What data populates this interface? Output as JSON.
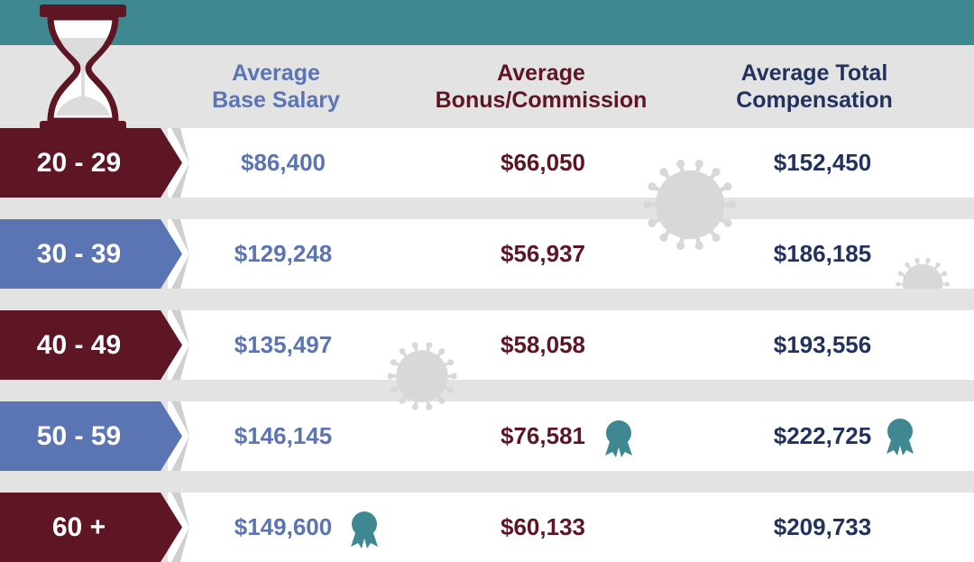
{
  "colors": {
    "teal": "#3f8791",
    "maroon": "#5e1524",
    "blue": "#5b74b3",
    "navy": "#22325f",
    "grey_band": "#e3e3e3"
  },
  "icons": {
    "header": "hourglass-icon",
    "award": "award-ribbon-icon",
    "decor": "virus-icon"
  },
  "headers": {
    "base_salary": [
      "Average",
      "Base Salary"
    ],
    "bonus_commission": [
      "Average",
      "Bonus/Commission"
    ],
    "total_compensation": [
      "Average Total",
      "Compensation"
    ]
  },
  "rows": [
    {
      "age_range": "20 - 29",
      "tag_color": "maroon",
      "base_salary": "$86,400",
      "bonus_commission": "$66,050",
      "total_compensation": "$152,450",
      "award_base": false,
      "award_bonus": false,
      "award_total": false
    },
    {
      "age_range": "30 - 39",
      "tag_color": "blue",
      "base_salary": "$129,248",
      "bonus_commission": "$56,937",
      "total_compensation": "$186,185",
      "award_base": false,
      "award_bonus": false,
      "award_total": false
    },
    {
      "age_range": "40 - 49",
      "tag_color": "maroon",
      "base_salary": "$135,497",
      "bonus_commission": "$58,058",
      "total_compensation": "$193,556",
      "award_base": false,
      "award_bonus": false,
      "award_total": false
    },
    {
      "age_range": "50 - 59",
      "tag_color": "blue",
      "base_salary": "$146,145",
      "bonus_commission": "$76,581",
      "total_compensation": "$222,725",
      "award_base": false,
      "award_bonus": true,
      "award_total": true
    },
    {
      "age_range": "60 +",
      "tag_color": "maroon",
      "base_salary": "$149,600",
      "bonus_commission": "$60,133",
      "total_compensation": "$209,733",
      "award_base": true,
      "award_bonus": false,
      "award_total": false
    }
  ]
}
